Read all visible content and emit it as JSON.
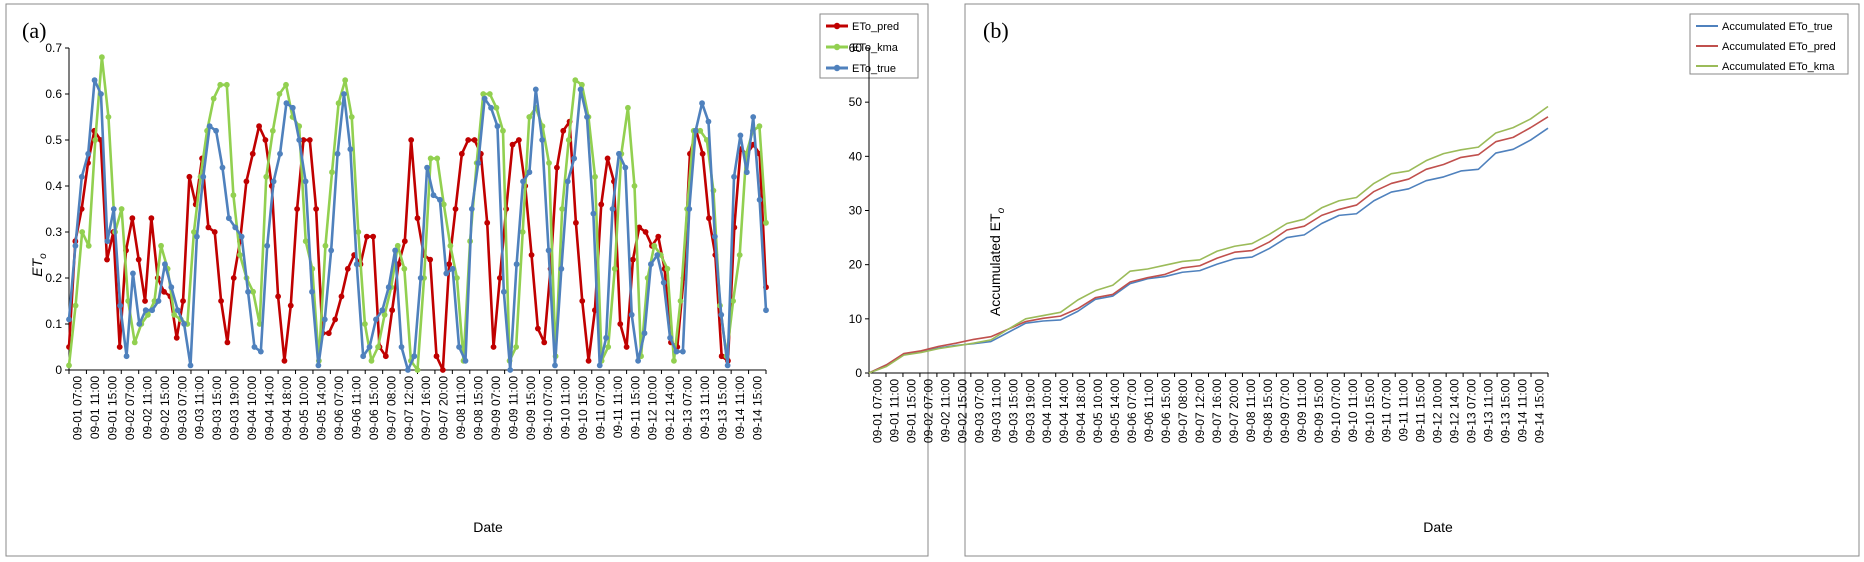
{
  "chart_data": [
    {
      "type": "line",
      "panel_label": "(a)",
      "xlabel": "Date",
      "ylabel_main": "ET",
      "ylabel_sub": "o",
      "ylim": [
        0,
        0.7
      ],
      "yticks": [
        0,
        0.1,
        0.2,
        0.3,
        0.4,
        0.5,
        0.6,
        0.7
      ],
      "ytick_labels": [
        "0",
        "0.1",
        "0.2",
        "0.3",
        "0.4",
        "0.5",
        "0.6",
        "0.7"
      ],
      "xtick_labels": [
        "09-01 07:00",
        "09-01 11:00",
        "09-01 15:00",
        "09-02 07:00",
        "09-02 11:00",
        "09-02 15:00",
        "09-03 07:00",
        "09-03 11:00",
        "09-03 15:00",
        "09-03 19:00",
        "09-04 10:00",
        "09-04 14:00",
        "09-04 18:00",
        "09-05 10:00",
        "09-05 14:00",
        "09-06 07:00",
        "09-06 11:00",
        "09-06 15:00",
        "09-07 08:00",
        "09-07 12:00",
        "09-07 16:00",
        "09-07 20:00",
        "09-08 11:00",
        "09-08 15:00",
        "09-09 07:00",
        "09-09 11:00",
        "09-09 15:00",
        "09-10 07:00",
        "09-10 11:00",
        "09-10 15:00",
        "09-11 07:00",
        "09-11 11:00",
        "09-11 15:00",
        "09-12 10:00",
        "09-12 14:00",
        "09-13 07:00",
        "09-13 11:00",
        "09-13 15:00",
        "09-14 11:00",
        "09-14 15:00"
      ],
      "legend_position": "top-right",
      "series": [
        {
          "name": "ETo_pred",
          "color": "#C00000",
          "marker": true,
          "values": [
            0.05,
            0.28,
            0.35,
            0.45,
            0.52,
            0.5,
            0.24,
            0.3,
            0.05,
            0.26,
            0.33,
            0.24,
            0.15,
            0.33,
            0.2,
            0.17,
            0.16,
            0.07,
            0.15,
            0.42,
            0.36,
            0.46,
            0.31,
            0.3,
            0.15,
            0.06,
            0.2,
            0.28,
            0.41,
            0.47,
            0.53,
            0.5,
            0.4,
            0.16,
            0.02,
            0.14,
            0.35,
            0.5,
            0.5,
            0.35,
            0.08,
            0.08,
            0.11,
            0.16,
            0.22,
            0.25,
            0.23,
            0.29,
            0.29,
            0.05,
            0.03,
            0.13,
            0.23,
            0.28,
            0.5,
            0.33,
            0.25,
            0.24,
            0.03,
            0.0,
            0.23,
            0.35,
            0.47,
            0.5,
            0.5,
            0.47,
            0.32,
            0.05,
            0.2,
            0.35,
            0.49,
            0.5,
            0.4,
            0.25,
            0.09,
            0.06,
            0.22,
            0.44,
            0.52,
            0.54,
            0.32,
            0.15,
            0.02,
            0.13,
            0.36,
            0.46,
            0.41,
            0.1,
            0.05,
            0.24,
            0.31,
            0.3,
            0.27,
            0.29,
            0.22,
            0.06,
            0.05,
            0.2,
            0.47,
            0.52,
            0.47,
            0.33,
            0.25,
            0.03,
            0.02,
            0.31,
            0.48,
            0.47,
            0.49,
            0.47,
            0.18
          ]
        },
        {
          "name": "ETo_kma",
          "color": "#92D050",
          "marker": true,
          "values": [
            0.01,
            0.14,
            0.3,
            0.27,
            0.5,
            0.68,
            0.55,
            0.3,
            0.35,
            0.15,
            0.06,
            0.1,
            0.12,
            0.15,
            0.27,
            0.22,
            0.12,
            0.11,
            0.1,
            0.3,
            0.42,
            0.52,
            0.59,
            0.62,
            0.62,
            0.38,
            0.25,
            0.2,
            0.17,
            0.1,
            0.42,
            0.52,
            0.6,
            0.62,
            0.55,
            0.53,
            0.28,
            0.22,
            0.02,
            0.27,
            0.43,
            0.58,
            0.63,
            0.55,
            0.3,
            0.1,
            0.02,
            0.05,
            0.12,
            0.18,
            0.27,
            0.22,
            0.02,
            0.0,
            0.2,
            0.46,
            0.46,
            0.36,
            0.27,
            0.2,
            0.02,
            0.28,
            0.45,
            0.6,
            0.6,
            0.57,
            0.52,
            0.02,
            0.05,
            0.3,
            0.55,
            0.57,
            0.53,
            0.45,
            0.03,
            0.35,
            0.5,
            0.63,
            0.62,
            0.55,
            0.42,
            0.02,
            0.05,
            0.22,
            0.47,
            0.57,
            0.4,
            0.03,
            0.2,
            0.27,
            0.25,
            0.22,
            0.02,
            0.15,
            0.35,
            0.52,
            0.52,
            0.5,
            0.39,
            0.14,
            0.03,
            0.15,
            0.25,
            0.47,
            0.52,
            0.53,
            0.32
          ]
        },
        {
          "name": "ETo_true",
          "color": "#4F81BD",
          "marker": true,
          "values": [
            0.11,
            0.27,
            0.42,
            0.47,
            0.63,
            0.6,
            0.28,
            0.35,
            0.14,
            0.03,
            0.21,
            0.1,
            0.13,
            0.13,
            0.15,
            0.23,
            0.18,
            0.13,
            0.1,
            0.01,
            0.29,
            0.42,
            0.53,
            0.52,
            0.44,
            0.33,
            0.31,
            0.29,
            0.17,
            0.05,
            0.04,
            0.27,
            0.41,
            0.47,
            0.58,
            0.57,
            0.5,
            0.41,
            0.17,
            0.01,
            0.11,
            0.26,
            0.47,
            0.6,
            0.48,
            0.23,
            0.03,
            0.05,
            0.11,
            0.13,
            0.18,
            0.26,
            0.05,
            0.0,
            0.03,
            0.2,
            0.44,
            0.38,
            0.37,
            0.21,
            0.22,
            0.05,
            0.02,
            0.35,
            0.45,
            0.59,
            0.57,
            0.53,
            0.17,
            0.0,
            0.23,
            0.41,
            0.43,
            0.61,
            0.5,
            0.26,
            0.01,
            0.22,
            0.41,
            0.46,
            0.61,
            0.55,
            0.34,
            0.01,
            0.07,
            0.35,
            0.47,
            0.44,
            0.12,
            0.02,
            0.08,
            0.23,
            0.25,
            0.19,
            0.07,
            0.04,
            0.04,
            0.35,
            0.52,
            0.58,
            0.54,
            0.29,
            0.12,
            0.01,
            0.42,
            0.51,
            0.43,
            0.55,
            0.37,
            0.13
          ]
        }
      ]
    },
    {
      "type": "line",
      "panel_label": "(b)",
      "xlabel": "Date",
      "ylabel_main": "Accumulated ET",
      "ylabel_sub": "o",
      "ylim": [
        0,
        60
      ],
      "yticks": [
        0,
        10,
        20,
        30,
        40,
        50,
        60
      ],
      "ytick_labels": [
        "0",
        "10",
        "20",
        "30",
        "40",
        "50",
        "60"
      ],
      "xtick_labels": [
        "09-01 07:00",
        "09-01 11:00",
        "09-01 15:00",
        "09-02 07:00",
        "09-02 11:00",
        "09-02 15:00",
        "09-03 07:00",
        "09-03 11:00",
        "09-03 15:00",
        "09-03 19:00",
        "09-04 10:00",
        "09-04 14:00",
        "09-04 18:00",
        "09-05 10:00",
        "09-05 14:00",
        "09-06 07:00",
        "09-06 11:00",
        "09-06 15:00",
        "09-07 08:00",
        "09-07 12:00",
        "09-07 16:00",
        "09-07 20:00",
        "09-08 11:00",
        "09-08 15:00",
        "09-09 07:00",
        "09-09 11:00",
        "09-09 15:00",
        "09-10 07:00",
        "09-10 11:00",
        "09-10 15:00",
        "09-11 07:00",
        "09-11 11:00",
        "09-11 15:00",
        "09-12 10:00",
        "09-12 14:00",
        "09-13 07:00",
        "09-13 11:00",
        "09-13 15:00",
        "09-14 11:00",
        "09-14 15:00"
      ],
      "legend_position": "top-right",
      "series": [
        {
          "name": "Accumulated ETo_true",
          "color": "#4F81BD",
          "marker": false,
          "values": [
            0,
            1.5,
            3.5,
            4,
            4.6,
            5.1,
            5.4,
            5.8,
            7.5,
            9.2,
            9.6,
            9.8,
            11.4,
            13.6,
            14.2,
            16.5,
            17.4,
            17.8,
            18.6,
            18.9,
            20.1,
            21.1,
            21.4,
            23,
            25,
            25.5,
            27.6,
            29.1,
            29.4,
            31.8,
            33.4,
            34,
            35.5,
            36.2,
            37.3,
            37.6,
            40.6,
            41.3,
            43,
            45.2
          ]
        },
        {
          "name": "Accumulated ETo_pred",
          "color": "#C0504D",
          "marker": false,
          "values": [
            0,
            1.5,
            3.6,
            4.1,
            4.9,
            5.5,
            6.2,
            6.7,
            8.1,
            9.5,
            10.1,
            10.5,
            11.9,
            13.9,
            14.5,
            16.8,
            17.6,
            18.2,
            19.4,
            19.8,
            21.2,
            22.3,
            22.6,
            24.2,
            26.4,
            27.1,
            29.1,
            30.2,
            31,
            33.5,
            35,
            35.8,
            37.6,
            38.5,
            39.8,
            40.3,
            42.7,
            43.5,
            45.3,
            47.3
          ]
        },
        {
          "name": "Accumulated ETo_kma",
          "color": "#9BBB59",
          "marker": false,
          "values": [
            0,
            1.2,
            3.3,
            3.8,
            4.5,
            5,
            5.5,
            6.1,
            8.1,
            10,
            10.6,
            11.2,
            13.5,
            15.2,
            16.2,
            18.8,
            19.2,
            19.9,
            20.6,
            20.9,
            22.5,
            23.4,
            23.9,
            25.6,
            27.6,
            28.4,
            30.5,
            31.8,
            32.4,
            35,
            36.8,
            37.3,
            39.2,
            40.5,
            41.2,
            41.7,
            44.3,
            45.3,
            46.9,
            49.2
          ]
        }
      ]
    }
  ]
}
